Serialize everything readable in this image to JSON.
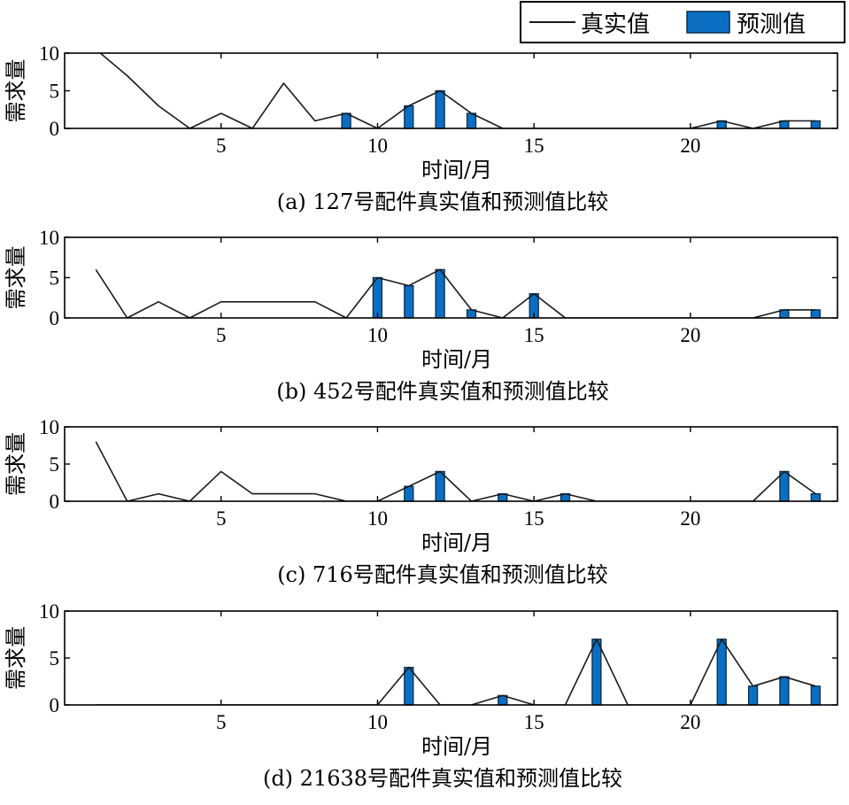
{
  "legend": {
    "line_label": "真实值",
    "bar_label": "预测值"
  },
  "colors": {
    "bar_fill": "#0a6fc2",
    "bar_stroke": "#0b2d4a",
    "line": "#1a1a1a",
    "axes": "#000000"
  },
  "chart_data": [
    {
      "type": "bar",
      "caption": "(a) 127号配件真实值和预测值比较",
      "xlabel": "时间/月",
      "ylabel": "需求量",
      "xlim": [
        0,
        24.7
      ],
      "ylim": [
        0,
        10
      ],
      "xticks": [
        5,
        10,
        15,
        20
      ],
      "yticks": [
        0,
        5,
        10
      ],
      "actual": {
        "name": "真实值",
        "x": [
          1,
          2,
          3,
          4,
          5,
          6,
          7,
          8,
          9,
          10,
          11,
          12,
          13,
          14,
          15,
          16,
          17,
          18,
          19,
          20,
          21,
          22,
          23,
          24
        ],
        "values": [
          10.5,
          7,
          3,
          0,
          2,
          0,
          6,
          1,
          2,
          0,
          3,
          5,
          2,
          0,
          0,
          0,
          0,
          0,
          0,
          0,
          1,
          0,
          1,
          1
        ]
      },
      "predicted": {
        "name": "预测值",
        "x": [
          9,
          11,
          12,
          13,
          21,
          23,
          24
        ],
        "values": [
          2,
          3,
          5,
          2,
          1,
          1,
          1
        ]
      }
    },
    {
      "type": "bar",
      "caption": "(b) 452号配件真实值和预测值比较",
      "xlabel": "时间/月",
      "ylabel": "需求量",
      "xlim": [
        0,
        24.7
      ],
      "ylim": [
        0,
        10
      ],
      "xticks": [
        5,
        10,
        15,
        20
      ],
      "yticks": [
        0,
        5,
        10
      ],
      "actual": {
        "name": "真实值",
        "x": [
          1,
          2,
          3,
          4,
          5,
          6,
          7,
          8,
          9,
          10,
          11,
          12,
          13,
          14,
          15,
          16,
          17,
          18,
          19,
          20,
          21,
          22,
          23,
          24
        ],
        "values": [
          6,
          0,
          2,
          0,
          2,
          2,
          2,
          2,
          0,
          5,
          4,
          6,
          1,
          0,
          3,
          0,
          0,
          0,
          0,
          0,
          0,
          0,
          1,
          1
        ]
      },
      "predicted": {
        "name": "预测值",
        "x": [
          10,
          11,
          12,
          13,
          15,
          23,
          24
        ],
        "values": [
          5,
          4,
          6,
          1,
          3,
          1,
          1
        ]
      }
    },
    {
      "type": "bar",
      "caption": "(c) 716号配件真实值和预测值比较",
      "xlabel": "时间/月",
      "ylabel": "需求量",
      "xlim": [
        0,
        24.7
      ],
      "ylim": [
        0,
        10
      ],
      "xticks": [
        5,
        10,
        15,
        20
      ],
      "yticks": [
        0,
        5,
        10
      ],
      "actual": {
        "name": "真实值",
        "x": [
          1,
          2,
          3,
          4,
          5,
          6,
          7,
          8,
          9,
          10,
          11,
          12,
          13,
          14,
          15,
          16,
          17,
          18,
          19,
          20,
          21,
          22,
          23,
          24
        ],
        "values": [
          8,
          0,
          1,
          0,
          4,
          1,
          1,
          1,
          0,
          0,
          2,
          4,
          0,
          1,
          0,
          1,
          0,
          0,
          0,
          0,
          0,
          0,
          4,
          1
        ]
      },
      "predicted": {
        "name": "预测值",
        "x": [
          11,
          12,
          14,
          16,
          23,
          24
        ],
        "values": [
          2,
          4,
          1,
          1,
          4,
          1
        ]
      }
    },
    {
      "type": "bar",
      "caption": "(d) 21638号配件真实值和预测值比较",
      "xlabel": "时间/月",
      "ylabel": "需求量",
      "xlim": [
        0,
        24.7
      ],
      "ylim": [
        0,
        10
      ],
      "xticks": [
        5,
        10,
        15,
        20
      ],
      "yticks": [
        0,
        5,
        10
      ],
      "actual": {
        "name": "真实值",
        "x": [
          1,
          2,
          3,
          4,
          5,
          6,
          7,
          8,
          9,
          10,
          11,
          12,
          13,
          14,
          15,
          16,
          17,
          18,
          19,
          20,
          21,
          22,
          23,
          24
        ],
        "values": [
          0,
          0,
          0,
          0,
          0,
          0,
          0,
          0,
          0,
          0,
          4,
          0,
          0,
          1,
          0,
          0,
          7,
          0,
          0,
          0,
          7,
          2,
          3,
          2
        ]
      },
      "predicted": {
        "name": "预测值",
        "x": [
          11,
          14,
          17,
          21,
          22,
          23,
          24
        ],
        "values": [
          4,
          1,
          7,
          7,
          2,
          3,
          2
        ]
      }
    }
  ]
}
